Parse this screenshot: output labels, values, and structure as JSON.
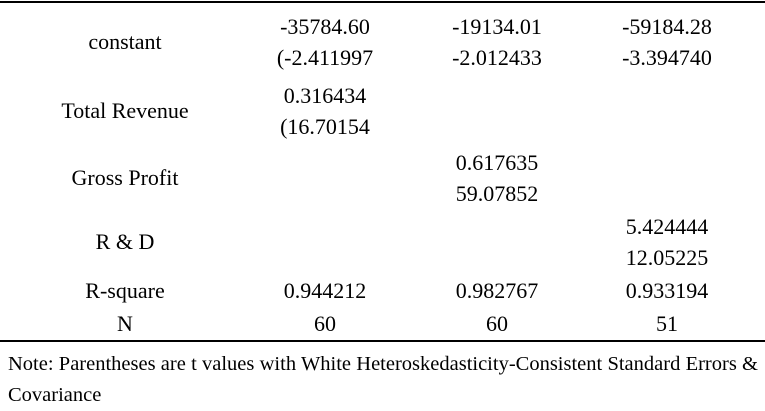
{
  "table": {
    "rows": [
      {
        "label": "constant",
        "cells": [
          [
            "-35784.60",
            "(-2.411997"
          ],
          [
            "-19134.01",
            "-2.012433"
          ],
          [
            "-59184.28",
            "-3.394740"
          ]
        ]
      },
      {
        "label": "Total Revenue",
        "cells": [
          [
            "0.316434",
            "(16.70154"
          ],
          null,
          null
        ]
      },
      {
        "label": "Gross Profit",
        "cells": [
          null,
          [
            "0.617635",
            "59.07852"
          ],
          null
        ]
      },
      {
        "label": "R & D",
        "cells": [
          null,
          null,
          [
            "5.424444",
            "12.05225"
          ]
        ]
      },
      {
        "label": "R-square",
        "cells": [
          [
            "0.944212"
          ],
          [
            "0.982767"
          ],
          [
            "0.933194"
          ]
        ]
      },
      {
        "label": "N",
        "cells": [
          [
            "60"
          ],
          [
            "60"
          ],
          [
            "51"
          ]
        ]
      }
    ],
    "note": "Note: Parentheses are t values with White Heteroskedasticity-Consistent Standard Errors & Covariance"
  }
}
